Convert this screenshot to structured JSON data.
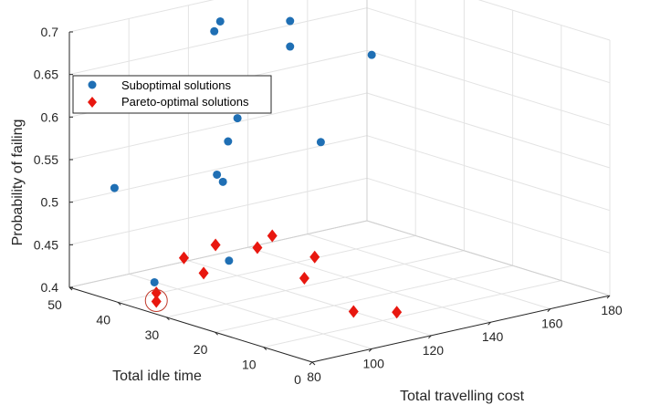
{
  "chart_data": {
    "type": "scatter",
    "dimensions": 3,
    "xlabel": "Total travelling cost",
    "ylabel": "Total idle time",
    "zlabel": "Probability of failing",
    "xlim": [
      80,
      180
    ],
    "ylim": [
      0,
      50
    ],
    "zlim": [
      0.4,
      0.7
    ],
    "xticks": [
      "80",
      "100",
      "120",
      "140",
      "160",
      "180"
    ],
    "yticks": [
      "0",
      "10",
      "20",
      "30",
      "40",
      "50"
    ],
    "zticks": [
      "0.4",
      "0.45",
      "0.5",
      "0.55",
      "0.6",
      "0.65",
      "0.7"
    ],
    "grid": true,
    "legend_position": "top-left",
    "series": [
      {
        "name": "Suboptimal solutions",
        "marker": "circle",
        "color": "#1f6fb4",
        "points": [
          {
            "x": 87,
            "y": 45,
            "z": 0.52
          },
          {
            "x": 89,
            "y": 38,
            "z": 0.42
          },
          {
            "x": 112,
            "y": 37,
            "z": 0.61
          },
          {
            "x": 112,
            "y": 35,
            "z": 0.6
          },
          {
            "x": 114,
            "y": 41,
            "z": 0.69
          },
          {
            "x": 116,
            "y": 41,
            "z": 0.7
          },
          {
            "x": 110,
            "y": 38,
            "z": 0.53
          },
          {
            "x": 112,
            "y": 38,
            "z": 0.52
          },
          {
            "x": 117,
            "y": 40,
            "z": 0.56
          },
          {
            "x": 101,
            "y": 30,
            "z": 0.45
          },
          {
            "x": 126,
            "y": 43,
            "z": 0.59
          },
          {
            "x": 146,
            "y": 45,
            "z": 0.67
          },
          {
            "x": 146,
            "y": 45,
            "z": 0.64
          },
          {
            "x": 140,
            "y": 35,
            "z": 0.55
          },
          {
            "x": 162,
            "y": 38,
            "z": 0.63
          }
        ]
      },
      {
        "name": "Pareto-optimal solutions",
        "marker": "diamond",
        "color": "#e8170f",
        "highlighted_index": 2,
        "points": [
          {
            "x": 94,
            "y": 35,
            "z": 0.45
          },
          {
            "x": 88,
            "y": 37,
            "z": 0.41
          },
          {
            "x": 88,
            "y": 37,
            "z": 0.4
          },
          {
            "x": 99,
            "y": 34,
            "z": 0.43
          },
          {
            "x": 103,
            "y": 34,
            "z": 0.46
          },
          {
            "x": 104,
            "y": 26,
            "z": 0.47
          },
          {
            "x": 109,
            "y": 26,
            "z": 0.48
          },
          {
            "x": 110,
            "y": 20,
            "z": 0.44
          },
          {
            "x": 120,
            "y": 16,
            "z": 0.4
          },
          {
            "x": 120,
            "y": 24,
            "z": 0.45
          },
          {
            "x": 128,
            "y": 12,
            "z": 0.4
          }
        ]
      }
    ]
  }
}
